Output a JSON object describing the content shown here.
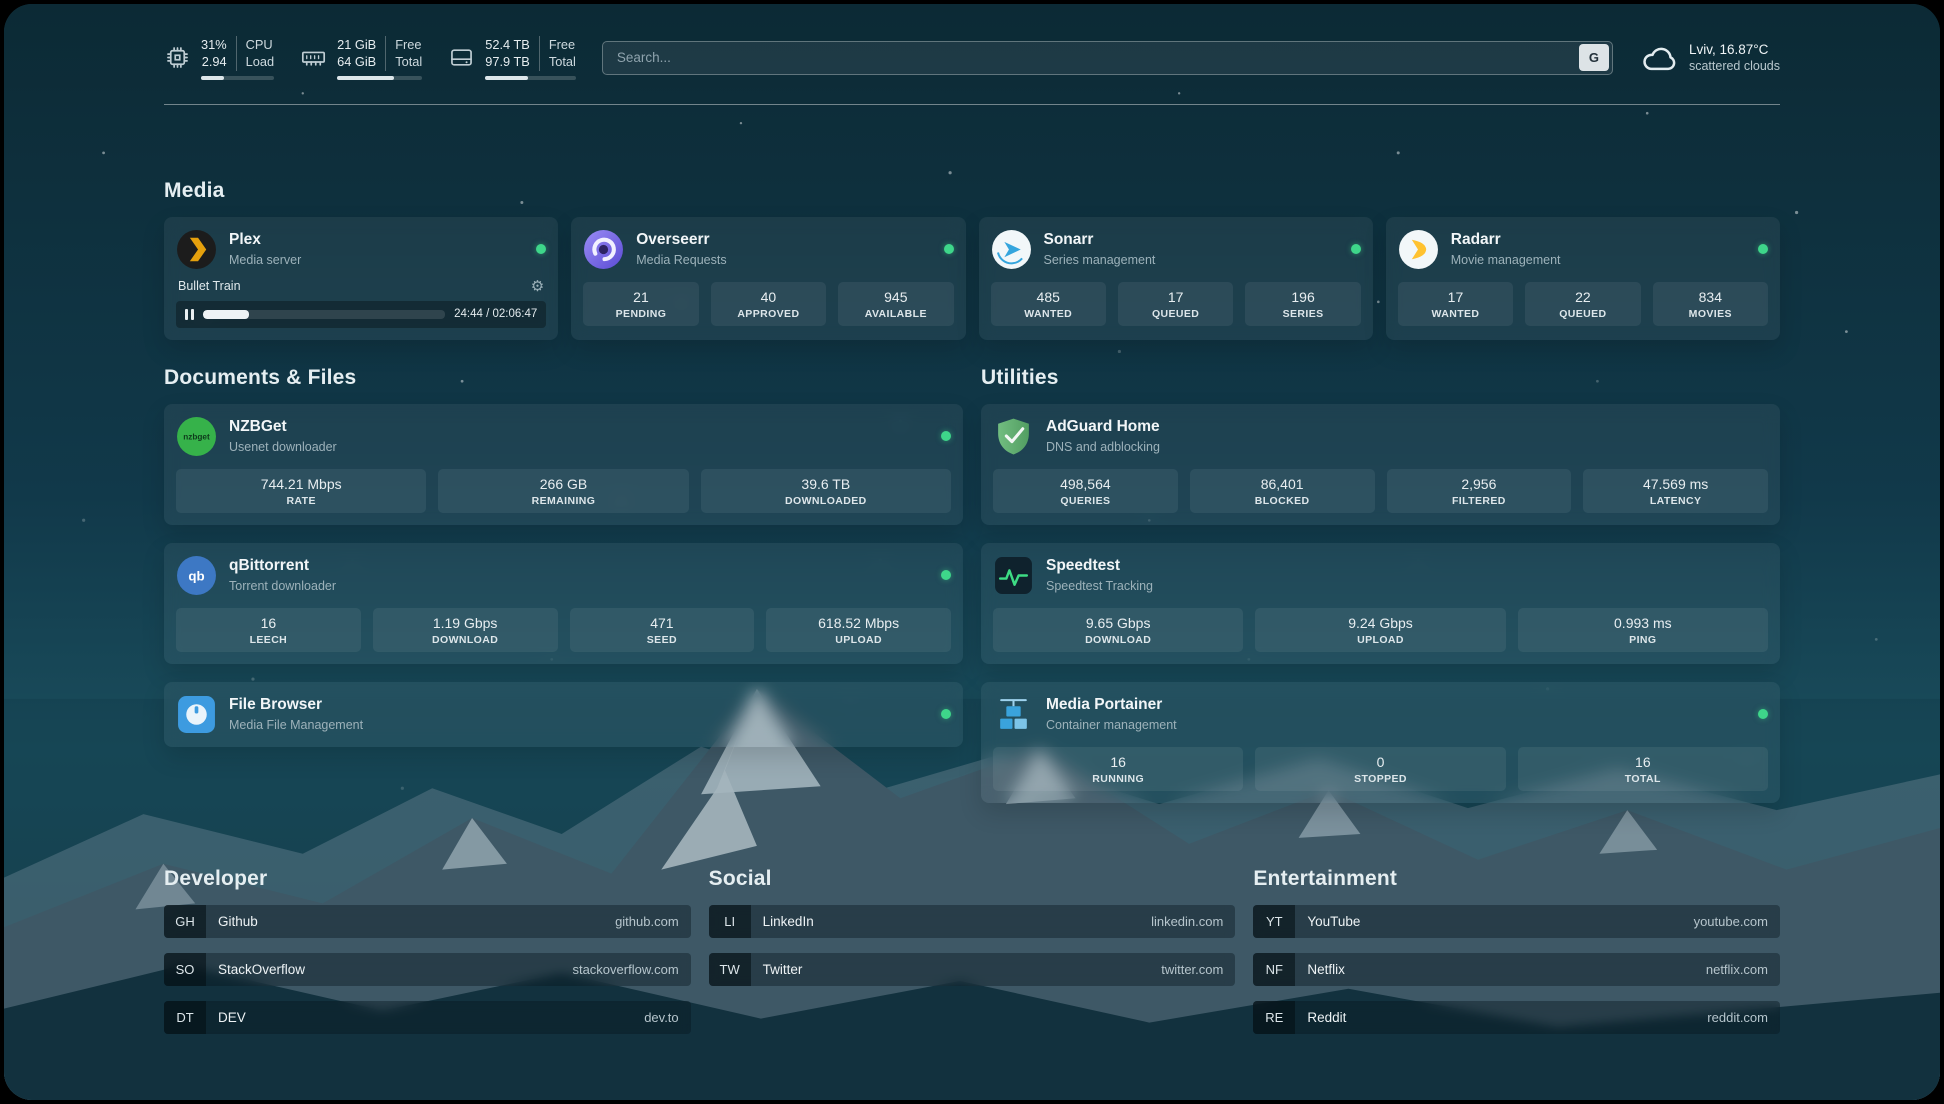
{
  "colors": {
    "status_online": "#3ed68a",
    "plex_amber": "#e5a00d",
    "sonarr_blue": "#35a5dd",
    "radarr_yellow": "#ffc230",
    "nzbget_green": "#36b24a",
    "qbittorrent_blue": "#3d78c4",
    "filebrowser_blue": "#3d9be0",
    "adguard_green": "#67b279",
    "speedtest_green": "#3ddc84",
    "portainer_blue": "#3aa3dc",
    "overseerr_purple": "#7b6ef0"
  },
  "topbar": {
    "cpu": {
      "value_top": "31%",
      "value_bottom": "2.94",
      "label_top": "CPU",
      "label_bottom": "Load",
      "bar_percent": 31
    },
    "memory": {
      "value_top": "21 GiB",
      "value_bottom": "64 GiB",
      "label_top": "Free",
      "label_bottom": "Total",
      "bar_percent": 67
    },
    "disk": {
      "value_top": "52.4 TB",
      "value_bottom": "97.9 TB",
      "label_top": "Free",
      "label_bottom": "Total",
      "bar_percent": 47
    },
    "search": {
      "placeholder": "Search...",
      "provider": "G"
    },
    "weather": {
      "location": "Lviv, 16.87°C",
      "condition": "scattered clouds"
    }
  },
  "sections": {
    "media": {
      "title": "Media",
      "plex": {
        "name": "Plex",
        "desc": "Media server",
        "now_playing": "Bullet Train",
        "time": "24:44 / 02:06:47",
        "progress_percent": 19
      },
      "overseerr": {
        "name": "Overseerr",
        "desc": "Media Requests",
        "stats": [
          {
            "value": "21",
            "label": "PENDING"
          },
          {
            "value": "40",
            "label": "APPROVED"
          },
          {
            "value": "945",
            "label": "AVAILABLE"
          }
        ]
      },
      "sonarr": {
        "name": "Sonarr",
        "desc": "Series management",
        "stats": [
          {
            "value": "485",
            "label": "WANTED"
          },
          {
            "value": "17",
            "label": "QUEUED"
          },
          {
            "value": "196",
            "label": "SERIES"
          }
        ]
      },
      "radarr": {
        "name": "Radarr",
        "desc": "Movie management",
        "stats": [
          {
            "value": "17",
            "label": "WANTED"
          },
          {
            "value": "22",
            "label": "QUEUED"
          },
          {
            "value": "834",
            "label": "MOVIES"
          }
        ]
      }
    },
    "documents": {
      "title": "Documents & Files",
      "nzbget": {
        "name": "NZBGet",
        "desc": "Usenet downloader",
        "stats": [
          {
            "value": "744.21 Mbps",
            "label": "RATE"
          },
          {
            "value": "266 GB",
            "label": "REMAINING"
          },
          {
            "value": "39.6 TB",
            "label": "DOWNLOADED"
          }
        ]
      },
      "qbittorrent": {
        "name": "qBittorrent",
        "desc": "Torrent downloader",
        "stats": [
          {
            "value": "16",
            "label": "LEECH"
          },
          {
            "value": "1.19 Gbps",
            "label": "DOWNLOAD"
          },
          {
            "value": "471",
            "label": "SEED"
          },
          {
            "value": "618.52 Mbps",
            "label": "UPLOAD"
          }
        ]
      },
      "filebrowser": {
        "name": "File Browser",
        "desc": "Media File Management"
      }
    },
    "utilities": {
      "title": "Utilities",
      "adguard": {
        "name": "AdGuard Home",
        "desc": "DNS and adblocking",
        "stats": [
          {
            "value": "498,564",
            "label": "QUERIES"
          },
          {
            "value": "86,401",
            "label": "BLOCKED"
          },
          {
            "value": "2,956",
            "label": "FILTERED"
          },
          {
            "value": "47.569 ms",
            "label": "LATENCY"
          }
        ]
      },
      "speedtest": {
        "name": "Speedtest",
        "desc": "Speedtest Tracking",
        "stats": [
          {
            "value": "9.65 Gbps",
            "label": "DOWNLOAD"
          },
          {
            "value": "9.24 Gbps",
            "label": "UPLOAD"
          },
          {
            "value": "0.993 ms",
            "label": "PING"
          }
        ]
      },
      "portainer": {
        "name": "Media Portainer",
        "desc": "Container management",
        "stats": [
          {
            "value": "16",
            "label": "RUNNING"
          },
          {
            "value": "0",
            "label": "STOPPED"
          },
          {
            "value": "16",
            "label": "TOTAL"
          }
        ]
      }
    }
  },
  "bookmarks": {
    "developer": {
      "title": "Developer",
      "items": [
        {
          "abbr": "GH",
          "name": "Github",
          "url": "github.com"
        },
        {
          "abbr": "SO",
          "name": "StackOverflow",
          "url": "stackoverflow.com"
        },
        {
          "abbr": "DT",
          "name": "DEV",
          "url": "dev.to"
        }
      ]
    },
    "social": {
      "title": "Social",
      "items": [
        {
          "abbr": "LI",
          "name": "LinkedIn",
          "url": "linkedin.com"
        },
        {
          "abbr": "TW",
          "name": "Twitter",
          "url": "twitter.com"
        }
      ]
    },
    "entertainment": {
      "title": "Entertainment",
      "items": [
        {
          "abbr": "YT",
          "name": "YouTube",
          "url": "youtube.com"
        },
        {
          "abbr": "NF",
          "name": "Netflix",
          "url": "netflix.com"
        },
        {
          "abbr": "RE",
          "name": "Reddit",
          "url": "reddit.com"
        }
      ]
    }
  }
}
